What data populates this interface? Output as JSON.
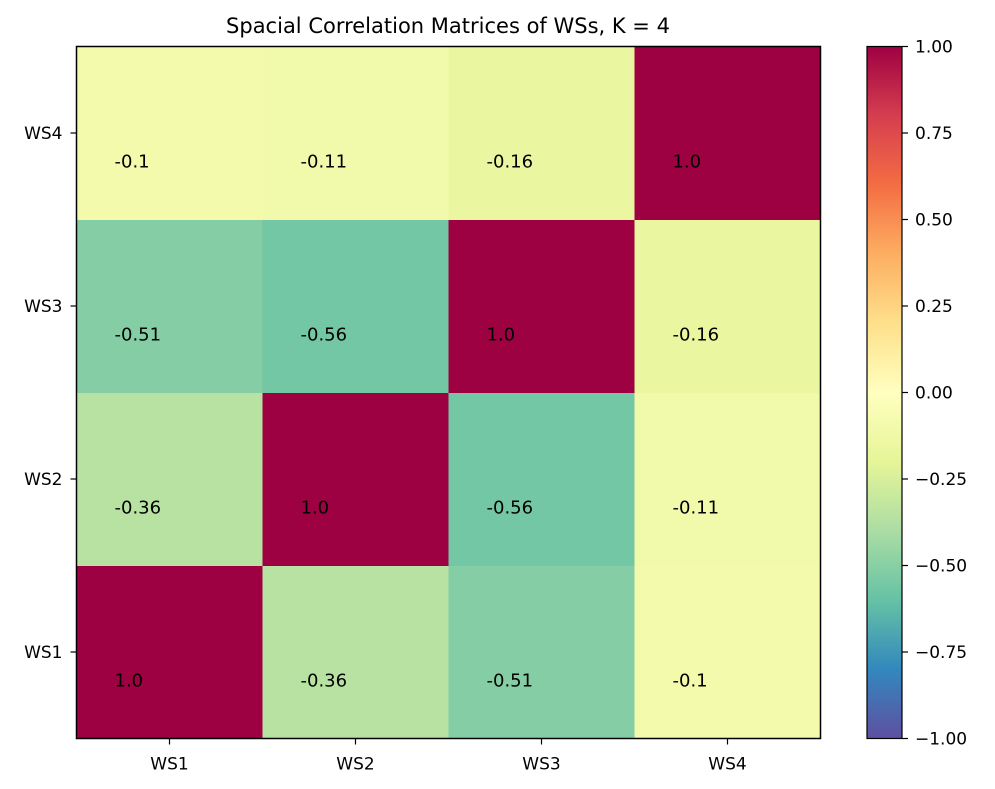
{
  "chart_data": {
    "type": "heatmap",
    "title": "Spacial Correlation Matrices of WSs, K = 4",
    "x_labels": [
      "WS1",
      "WS2",
      "WS3",
      "WS4"
    ],
    "y_labels": [
      "WS1",
      "WS2",
      "WS3",
      "WS4"
    ],
    "values": [
      [
        1.0,
        -0.36,
        -0.51,
        -0.1
      ],
      [
        -0.36,
        1.0,
        -0.56,
        -0.11
      ],
      [
        -0.51,
        -0.56,
        1.0,
        -0.16
      ],
      [
        -0.1,
        -0.11,
        -0.16,
        1.0
      ]
    ],
    "cell_text": [
      [
        "1.0",
        "-0.36",
        "-0.51",
        "-0.1"
      ],
      [
        "-0.36",
        "1.0",
        "-0.56",
        "-0.11"
      ],
      [
        "-0.51",
        "-0.56",
        "1.0",
        "-0.16"
      ],
      [
        "-0.1",
        "-0.11",
        "-0.16",
        "1.0"
      ]
    ],
    "colormap": "Spectral",
    "vmin": -1.0,
    "vmax": 1.0,
    "colorbar_ticks": [
      "1.00",
      "0.75",
      "0.50",
      "0.25",
      "0.00",
      "−0.25",
      "−0.50",
      "−0.75",
      "−1.00"
    ],
    "colorbar_tick_values": [
      1.0,
      0.75,
      0.5,
      0.25,
      0.0,
      -0.25,
      -0.5,
      -0.75,
      -1.0
    ],
    "y_axis_order": "WS1 at bottom, WS4 at top",
    "grid": false
  }
}
